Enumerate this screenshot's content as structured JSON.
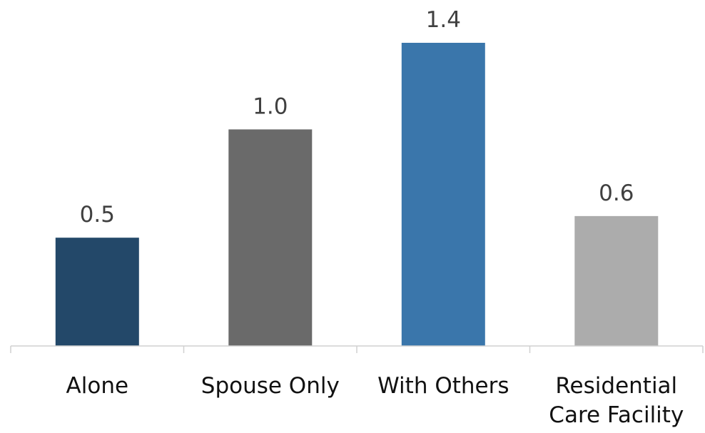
{
  "chart_data": {
    "type": "bar",
    "title": "",
    "xlabel": "",
    "ylabel": "",
    "categories": [
      [
        "Alone"
      ],
      [
        "Spouse Only"
      ],
      [
        "With Others"
      ],
      [
        "Residential",
        "Care Facility"
      ]
    ],
    "values": [
      0.5,
      1.0,
      1.4,
      0.6
    ],
    "value_labels": [
      "0.5",
      "1.0",
      "1.4",
      "0.6"
    ],
    "colors": [
      "#234869",
      "#6a6a6a",
      "#3a76ab",
      "#acacac"
    ],
    "ylim": [
      0,
      1.4
    ],
    "grid": false,
    "legend": "none"
  }
}
